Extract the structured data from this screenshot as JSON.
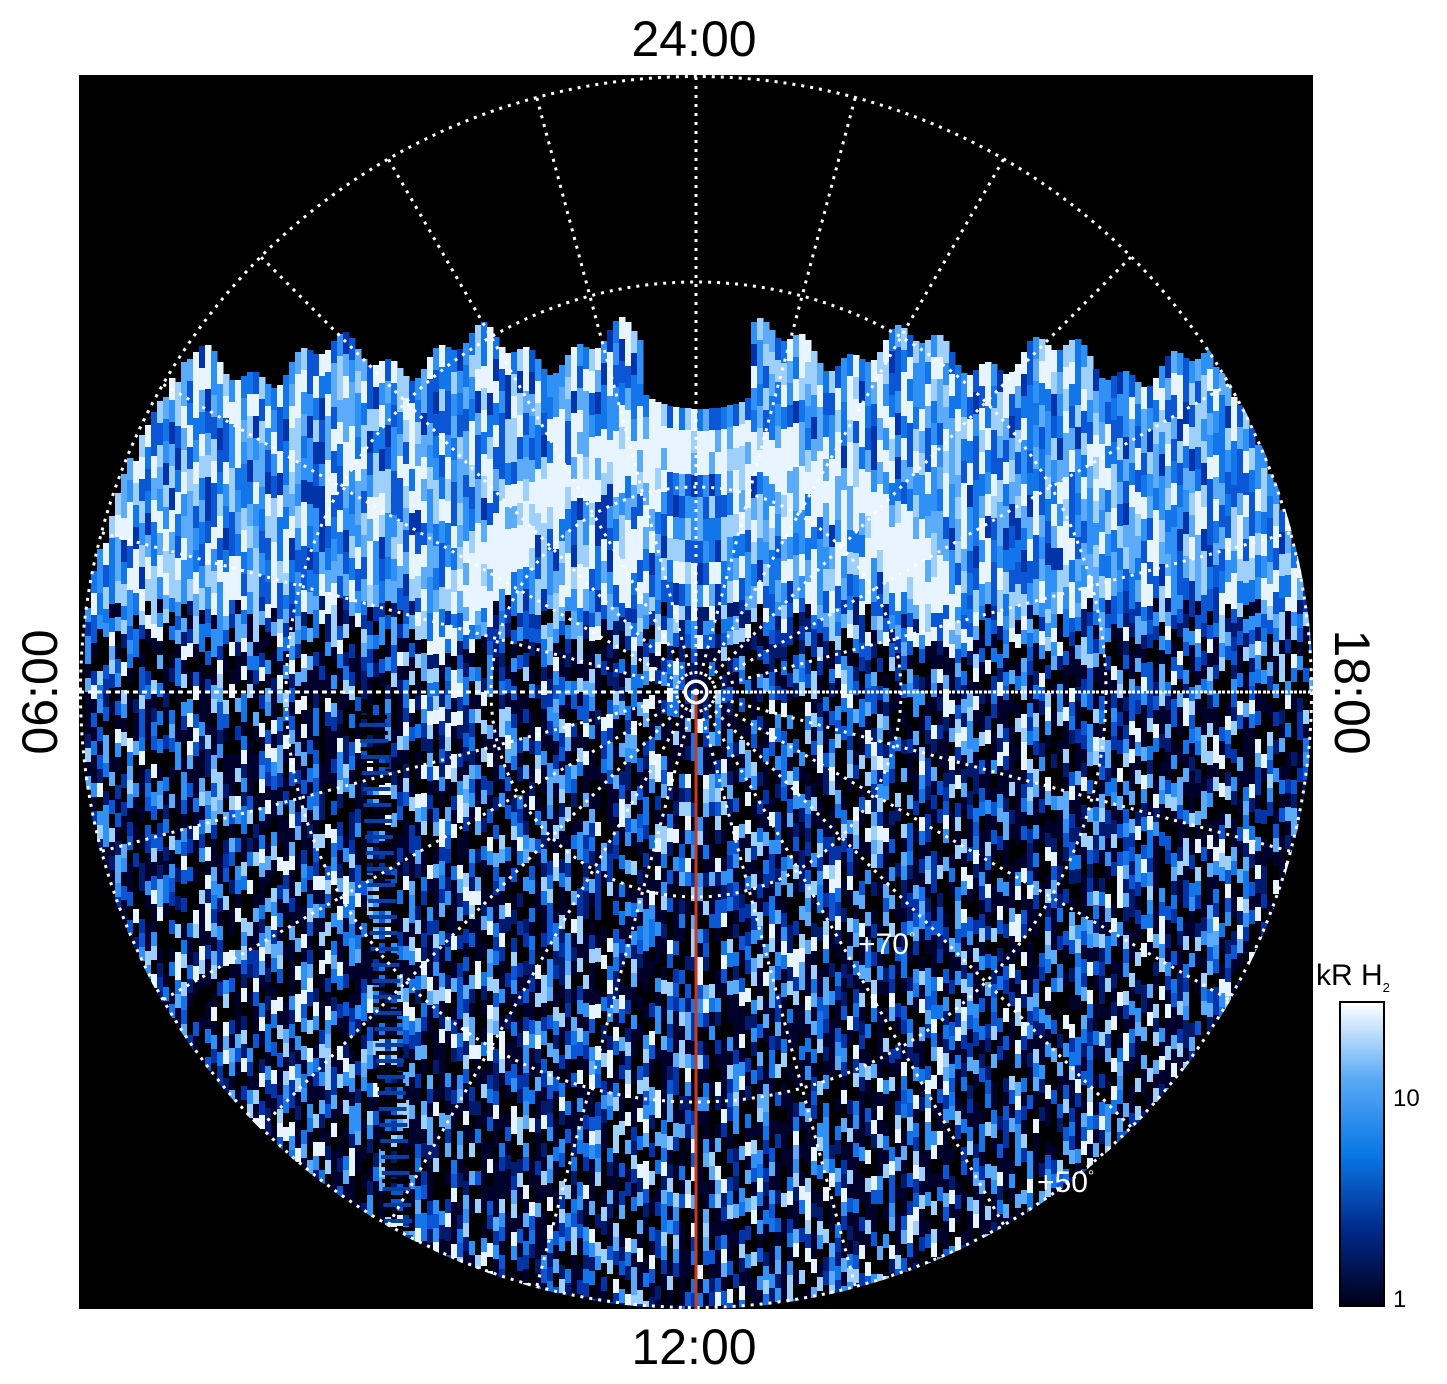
{
  "map": {
    "local_time_labels": {
      "top": "24:00",
      "bottom": "12:00",
      "left": "06:00",
      "right": "18:00"
    },
    "latitude_labels": {
      "inner": "+70",
      "outer": "+50",
      "degree_symbol": "°"
    },
    "projection": "polar",
    "background_color": "#000000",
    "grid_color": "#ffffff",
    "grid_style": "dotted",
    "meridian_line_color": "#cc3a1c",
    "center_marker": "circle"
  },
  "colorbar": {
    "title_main": "kR H",
    "title_subscript": "2",
    "scale": "log",
    "ticks": [
      "10",
      "1"
    ],
    "colors": [
      "#00001a",
      "#002a8c",
      "#0a78e6",
      "#5aaaf5",
      "#ffffff"
    ]
  }
}
